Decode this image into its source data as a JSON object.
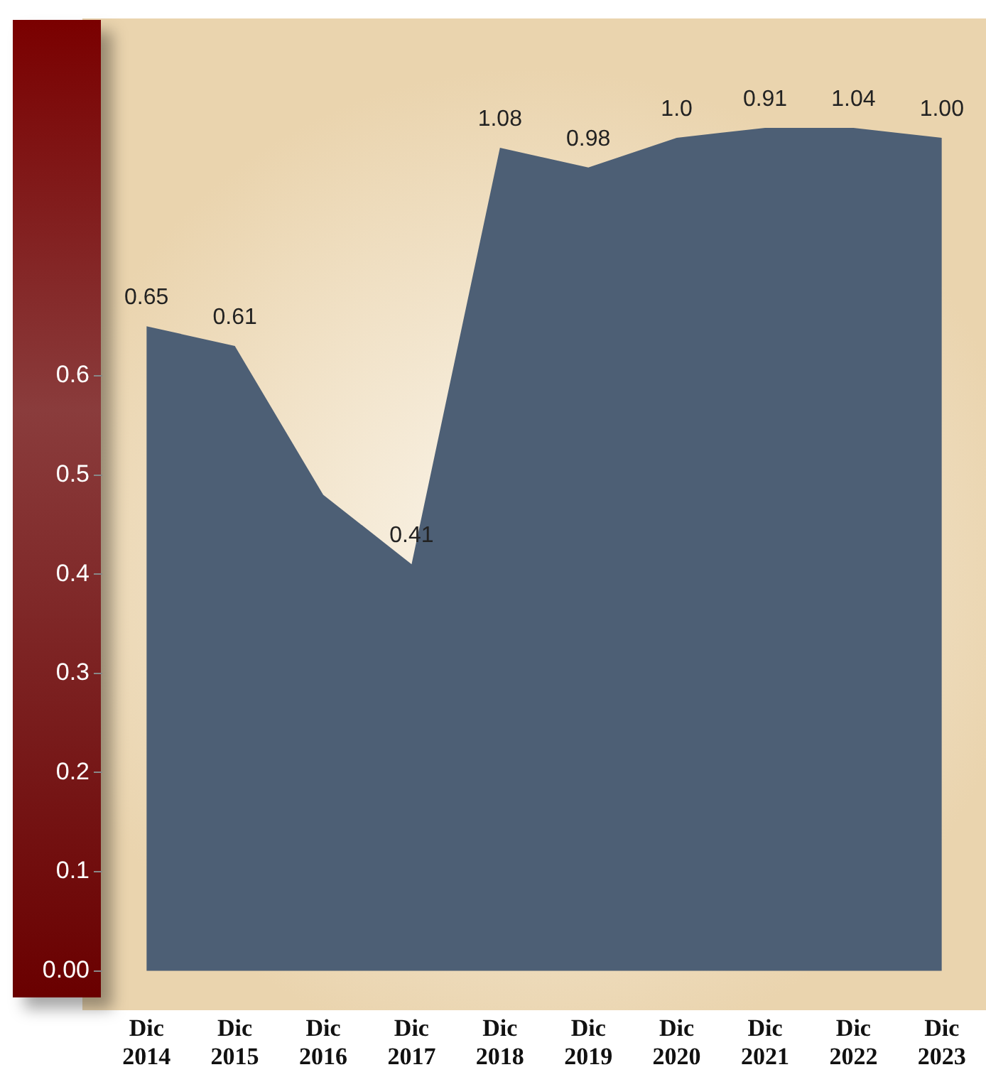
{
  "chart_data": {
    "type": "area",
    "categories": [
      "Dic 2014",
      "Dic 2015",
      "Dic 2016",
      "Dic 2017",
      "Dic 2018",
      "Dic 2019",
      "Dic 2020",
      "Dic 2021",
      "Dic 2022",
      "Dic 2023"
    ],
    "series": [
      {
        "color": "#4d5f75",
        "values": [
          0.65,
          0.63,
          0.48,
          0.41,
          0.83,
          0.81,
          0.84,
          0.85,
          0.85,
          0.84
        ]
      }
    ],
    "annotations": [
      {
        "text": "0.65",
        "x": "Dic 2014",
        "y": 0.65
      },
      {
        "text": "0.61",
        "x": "Dic 2015",
        "y": 0.63
      },
      {
        "text": "0.41",
        "x": "Dic 2017",
        "y": 0.41
      },
      {
        "text": "1.08",
        "x": "Dic 2018",
        "y": 0.83
      },
      {
        "text": "0.98",
        "x": "Dic 2019",
        "y": 0.81
      },
      {
        "text": "1.0",
        "x": "Dic 2020",
        "y": 0.84
      },
      {
        "text": "0.91",
        "x": "Dic 2021",
        "y": 0.85
      },
      {
        "text": "1.04",
        "x": "Dic 2022",
        "y": 0.85
      },
      {
        "text": "1.00",
        "x": "Dic 2023",
        "y": 0.84
      }
    ],
    "ylim": [
      -0.04,
      0.96
    ],
    "yticks": [
      {
        "value": 0,
        "label": "0.00"
      },
      0.1,
      0.2,
      0.3,
      0.4,
      0.5,
      0.6
    ],
    "grid": false,
    "legend": false
  }
}
